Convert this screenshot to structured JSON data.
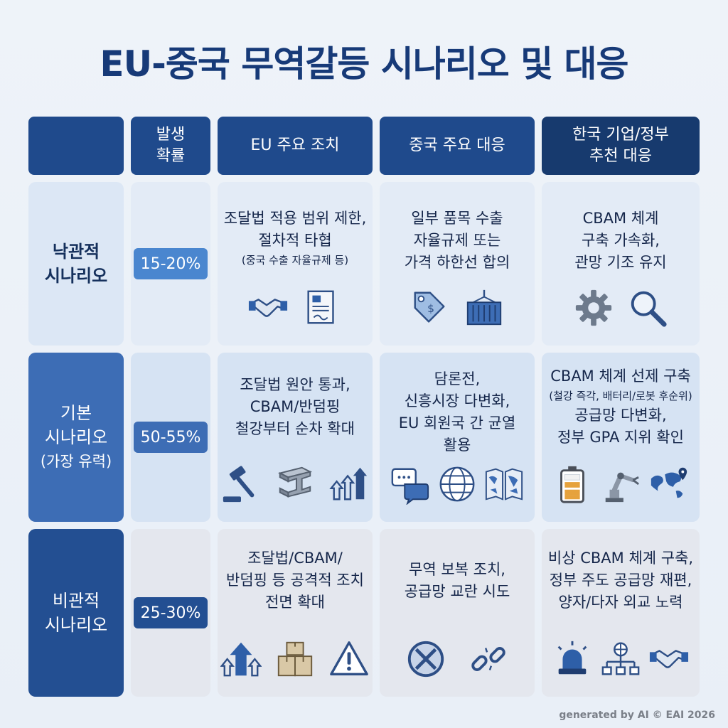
{
  "title": "EU-중국 무역갈등 시나리오 및 대응",
  "headers": {
    "probability": [
      "발생",
      "확률"
    ],
    "eu": "EU 주요 조치",
    "china": "중국 주요 대응",
    "korea": [
      "한국 기업/정부",
      "추천 대응"
    ]
  },
  "rows": [
    {
      "label": [
        "낙관적",
        "시나리오"
      ],
      "probability": "15-20%",
      "eu": [
        "조달법 적용 범위 제한,",
        "절차적 타협"
      ],
      "eu_note": "(중국 수출 자율규제 등)",
      "china": [
        "일부 품목 수출",
        "자율규제 또는",
        "가격 하한선 합의"
      ],
      "korea": [
        "CBAM 체계",
        "구축 가속화,",
        "관망 기조 유지"
      ],
      "icons": {
        "eu": [
          "handshake-icon",
          "document-icon"
        ],
        "china": [
          "price-tag-icon",
          "shipping-container-icon"
        ],
        "korea": [
          "gear-icon",
          "magnifier-icon"
        ]
      }
    },
    {
      "label": [
        "기본",
        "시나리오"
      ],
      "label_sub": "(가장 유력)",
      "probability": "50-55%",
      "eu": [
        "조달법 원안 통과,",
        "CBAM/반덤핑",
        "철강부터 순차 확대"
      ],
      "china": [
        "담론전,",
        "신흥시장 다변화,",
        "EU 회원국 간 균열",
        "활용"
      ],
      "korea": [
        "CBAM 체계 선제 구축",
        "공급망 다변화,",
        "정부 GPA 지위 확인"
      ],
      "korea_note": "(철강 즉각, 배터리/로봇 후순위)",
      "icons": {
        "eu": [
          "gavel-icon",
          "steel-beam-icon",
          "rising-arrows-icon"
        ],
        "china": [
          "chat-bubbles-icon",
          "globe-icon",
          "split-map-icon"
        ],
        "korea": [
          "battery-icon",
          "robot-arm-icon",
          "world-map-pin-icon"
        ]
      }
    },
    {
      "label": [
        "비관적",
        "시나리오"
      ],
      "probability": "25-30%",
      "eu": [
        "조달법/CBAM/",
        "반덤핑 등 공격적 조치",
        "전면 확대"
      ],
      "china": [
        "무역 보복 조치,",
        "공급망 교란 시도"
      ],
      "korea": [
        "비상 CBAM 체계 구축,",
        "정부 주도 공급망 재편,",
        "양자/다자 외교 노력"
      ],
      "icons": {
        "eu": [
          "up-arrows-icon",
          "boxes-icon",
          "warning-icon"
        ],
        "china": [
          "blocked-icon",
          "broken-chain-icon"
        ],
        "korea": [
          "alarm-siren-icon",
          "network-icon",
          "handshake-icon"
        ]
      }
    }
  ],
  "colors": {
    "header": "#1f4a8c",
    "badge_optimistic": "#4a86cf",
    "badge_base": "#3d6db5",
    "badge_pessimistic": "#234f92"
  },
  "footer": "generated by AI © EAI 2026"
}
